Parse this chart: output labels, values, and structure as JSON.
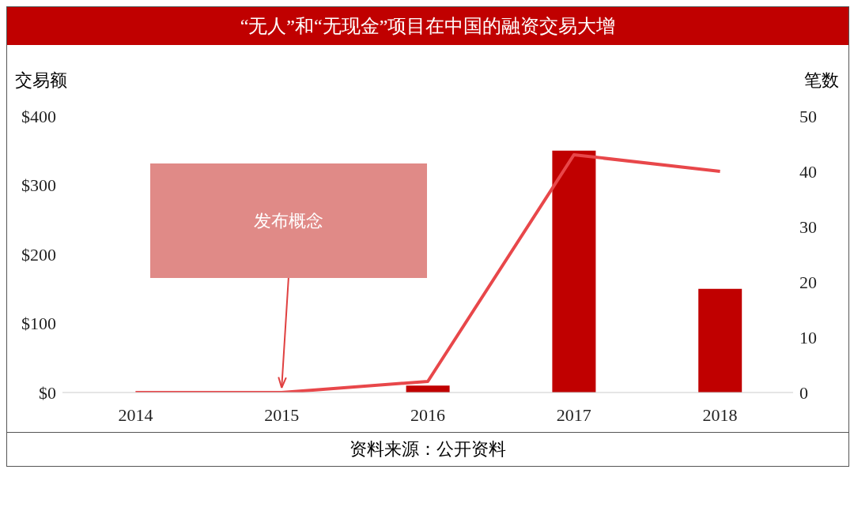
{
  "chart_data": {
    "type": "bar",
    "title": "“无人”和“无现金”项目在中国的融资交易大增",
    "ylabel": "交易额",
    "y2label": "笔数",
    "categories": [
      "2014",
      "2015",
      "2016",
      "2017",
      "2018"
    ],
    "series": [
      {
        "color": "#c00000",
        "values": [
          0,
          0,
          10,
          350,
          150
        ]
      },
      {
        "type": "line",
        "axis": "y2",
        "color": "#e8474a",
        "values": [
          0,
          0,
          2,
          43,
          40
        ]
      }
    ],
    "ylim": [
      0,
      400
    ],
    "yticks": [
      {
        "value": 0,
        "label": "$0"
      },
      {
        "value": 100,
        "label": "$100"
      },
      {
        "value": 200,
        "label": "$200"
      },
      {
        "value": 300,
        "label": "$300"
      },
      {
        "value": 400,
        "label": "$400"
      }
    ],
    "y2lim": [
      0,
      50
    ],
    "y2ticks": [
      0,
      10,
      20,
      30,
      40,
      50
    ],
    "grid": false,
    "legend": false,
    "marker": "none",
    "line_style": "solid",
    "annotations": [
      "发布概念",
      "资料来源：公开资料"
    ]
  }
}
